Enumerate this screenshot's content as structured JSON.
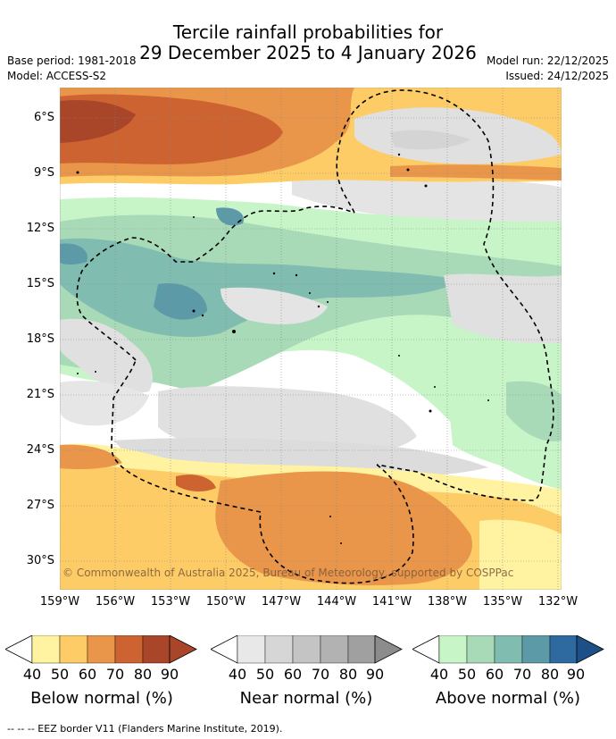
{
  "title_line1": "Tercile rainfall probabilities for",
  "title_line2": "29 December 2025 to 4 January 2026",
  "base_period": "Base period: 1981-2018",
  "model": "Model: ACCESS-S2",
  "model_run": "Model run: 22/12/2025",
  "issued": "Issued: 24/12/2025",
  "credit": "© Commonwealth of Australia 2025, Bureau of Meteorology, supported by COSPPac",
  "footnote": "-- -- -- EEZ border V11 (Flanders Marine Institute, 2019).",
  "lat_ticks": [
    "6°S",
    "9°S",
    "12°S",
    "15°S",
    "18°S",
    "21°S",
    "24°S",
    "27°S",
    "30°S"
  ],
  "lon_ticks": [
    "159°W",
    "156°W",
    "153°W",
    "150°W",
    "147°W",
    "144°W",
    "141°W",
    "138°W",
    "135°W",
    "132°W"
  ],
  "colorbars": [
    {
      "label": "Below normal (%)",
      "ticks": [
        "40",
        "50",
        "60",
        "70",
        "80",
        "90"
      ],
      "colors": [
        "#fff2a0",
        "#fdcc66",
        "#e9964a",
        "#cd6330",
        "#a9462a",
        "#a9462a"
      ]
    },
    {
      "label": "Near normal (%)",
      "ticks": [
        "40",
        "50",
        "60",
        "70",
        "80",
        "90"
      ],
      "colors": [
        "#e8e8e8",
        "#d6d6d6",
        "#c4c4c4",
        "#b2b2b2",
        "#a0a0a0",
        "#8c8c8c"
      ]
    },
    {
      "label": "Above normal (%)",
      "ticks": [
        "40",
        "50",
        "60",
        "70",
        "80",
        "90"
      ],
      "colors": [
        "#c8f5c8",
        "#a8dab8",
        "#80bcb0",
        "#5c9aa8",
        "#2e6aa0",
        "#1c5086"
      ]
    }
  ],
  "colors": {
    "below_40": "#fff2a0",
    "below_50": "#fdcc66",
    "below_60": "#e9964a",
    "below_70": "#cd6330",
    "below_80": "#a9462a",
    "near_40": "#e8e8e8",
    "near_50": "#d6d6d6",
    "above_40": "#c8f5c8",
    "above_50": "#a8dab8",
    "above_60": "#80bcb0",
    "above_70": "#5c9aa8"
  }
}
